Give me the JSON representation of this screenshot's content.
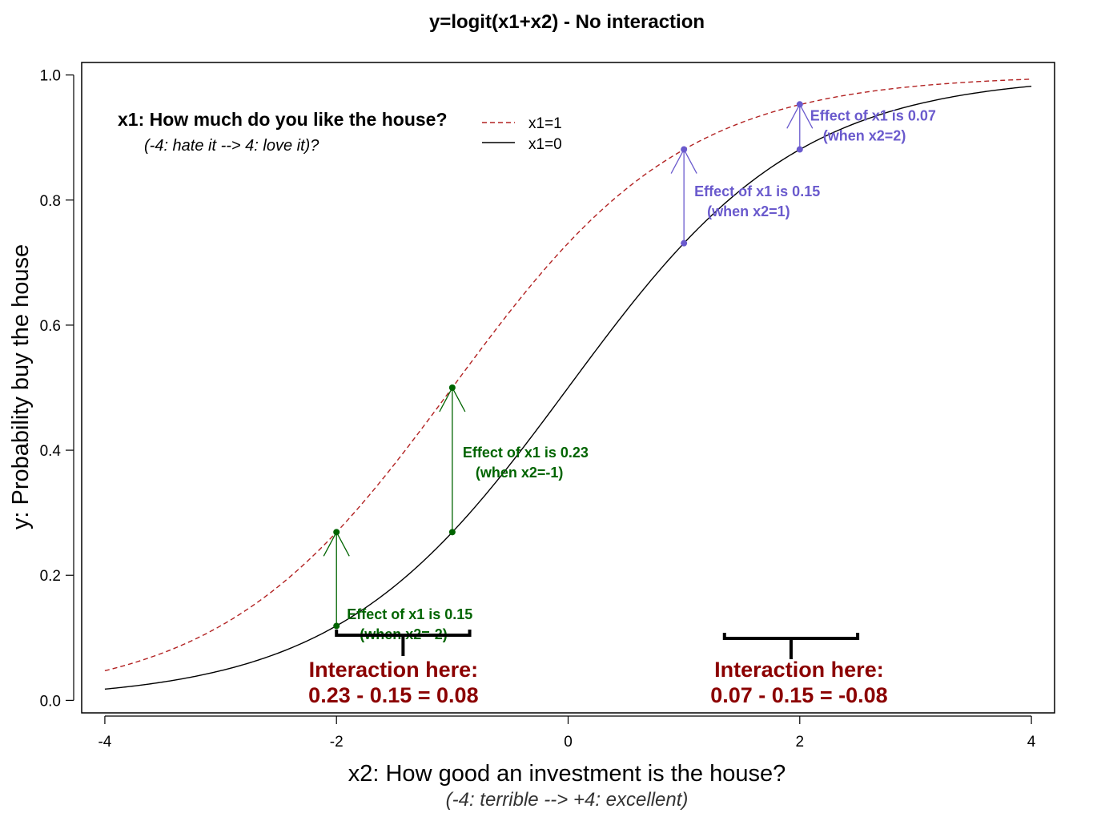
{
  "chart_data": {
    "type": "line",
    "title": "y=logit(x1+x2)  - No interaction",
    "xlabel": "x2: How good an investment is the house?",
    "xlabel_sub": "(-4: terrible --> +4: excellent)",
    "ylabel": "y: Probability buy the house",
    "xlim": [
      -4.2,
      4.2
    ],
    "ylim": [
      -0.02,
      1.02
    ],
    "x_ticks": [
      -4,
      -2,
      0,
      2,
      4
    ],
    "y_ticks": [
      0.0,
      0.2,
      0.4,
      0.6,
      0.8,
      1.0
    ],
    "x_tick_labels": [
      "-4",
      "-2",
      "0",
      "2",
      "4"
    ],
    "y_tick_labels": [
      "0.0",
      "0.2",
      "0.4",
      "0.6",
      "0.8",
      "1.0"
    ],
    "legend": {
      "title": "x1: How much do you like the house?",
      "subtitle": "(-4: hate it --> 4: love it)?",
      "placement": "top-left",
      "entries": [
        {
          "label": "x1=1",
          "color": "#b22222",
          "style": "dashed"
        },
        {
          "label": "x1=0",
          "color": "#000000",
          "style": "solid"
        }
      ]
    },
    "series": [
      {
        "name": "x1=1",
        "color": "#b22222",
        "style": "dashed",
        "x": [
          -4,
          -3.5,
          -3,
          -2.5,
          -2,
          -1.5,
          -1,
          -0.5,
          0,
          0.5,
          1,
          1.5,
          2,
          2.5,
          3,
          3.5,
          4
        ],
        "y": [
          0.047,
          0.076,
          0.119,
          0.182,
          0.269,
          0.378,
          0.5,
          0.622,
          0.731,
          0.818,
          0.881,
          0.924,
          0.953,
          0.971,
          0.982,
          0.989,
          0.993
        ]
      },
      {
        "name": "x1=0",
        "color": "#000000",
        "style": "solid",
        "x": [
          -4,
          -3.5,
          -3,
          -2.5,
          -2,
          -1.5,
          -1,
          -0.5,
          0,
          0.5,
          1,
          1.5,
          2,
          2.5,
          3,
          3.5,
          4
        ],
        "y": [
          0.018,
          0.029,
          0.047,
          0.076,
          0.119,
          0.182,
          0.269,
          0.378,
          0.5,
          0.622,
          0.731,
          0.818,
          0.881,
          0.924,
          0.953,
          0.971,
          0.982
        ]
      }
    ],
    "effects": [
      {
        "x": -2,
        "y_from": 0.119,
        "y_to": 0.269,
        "color": "#006400",
        "line1": "Effect of x1 is 0.15",
        "line2": "(when x2=-2)"
      },
      {
        "x": -1,
        "y_from": 0.269,
        "y_to": 0.5,
        "color": "#006400",
        "line1": "Effect of x1 is 0.23",
        "line2": "(when x2=-1)"
      },
      {
        "x": 1,
        "y_from": 0.731,
        "y_to": 0.881,
        "color": "#6a5acd",
        "line1": "Effect of x1 is 0.15",
        "line2": "(when x2=1)"
      },
      {
        "x": 2,
        "y_from": 0.881,
        "y_to": 0.953,
        "color": "#6a5acd",
        "line1": "Effect of x1 is 0.07",
        "line2": "(when x2=2)"
      }
    ],
    "interactions": [
      {
        "x_from": -2,
        "x_to": -0.85,
        "line1": "Interaction here:",
        "line2": "0.23 - 0.15 = 0.08"
      },
      {
        "x_from": 1.35,
        "x_to": 2.5,
        "line1": "Interaction here:",
        "line2": "0.07 - 0.15 = -0.08"
      }
    ]
  }
}
